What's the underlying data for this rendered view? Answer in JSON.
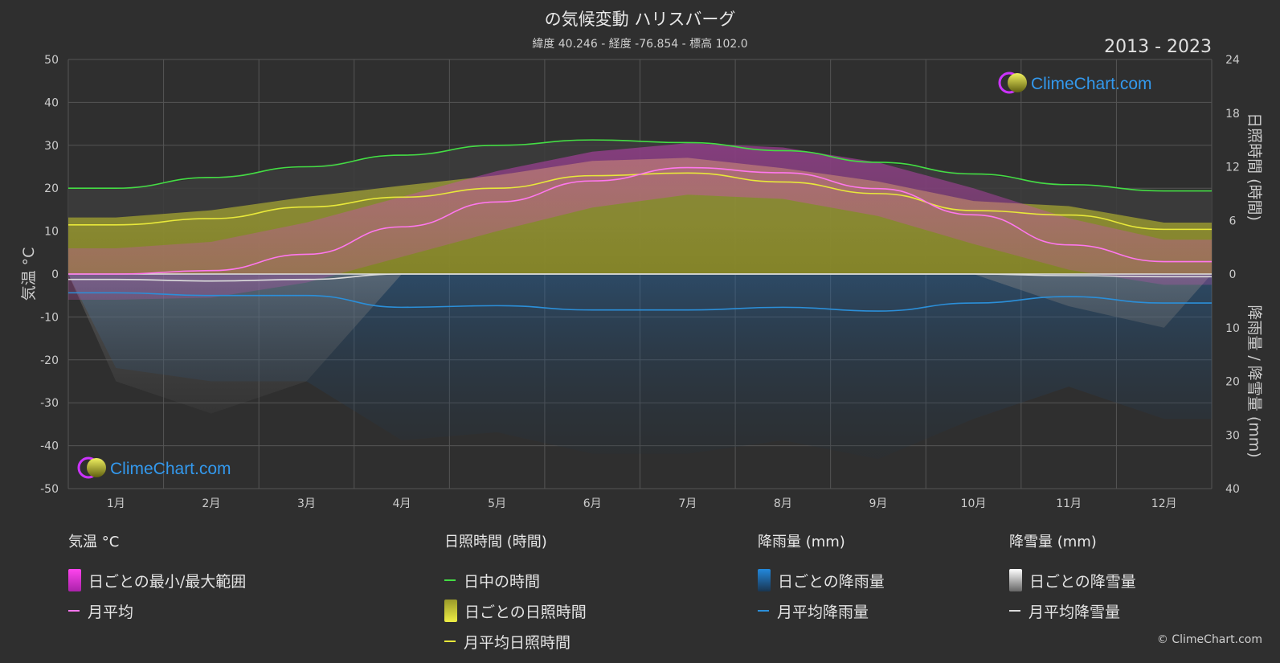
{
  "title": "の気候変動 ハリスバーグ",
  "subtitle": "緯度 40.246 - 経度 -76.854 - 標高 102.0",
  "years": "2013 - 2023",
  "brand": "ClimeChart.com",
  "copyright": "© ClimeChart.com",
  "axes": {
    "left_label": "気温 °C",
    "right_top_label": "日照時間 (時間)",
    "right_bottom_label": "降雨量 / 降雪量 (mm)",
    "left_ticks": [
      "50",
      "40",
      "30",
      "20",
      "10",
      "0",
      "-10",
      "-20",
      "-30",
      "-40",
      "-50"
    ],
    "right_top_ticks": [
      "24",
      "18",
      "12",
      "6",
      "0"
    ],
    "right_bottom_ticks": [
      "10",
      "20",
      "30",
      "40"
    ]
  },
  "legend": {
    "temperature": {
      "header": "気温 °C",
      "range": "日ごとの最小/最大範囲",
      "avg": "月平均"
    },
    "sunshine": {
      "header": "日照時間 (時間)",
      "daylight": "日中の時間",
      "daily": "日ごとの日照時間",
      "avg": "月平均日照時間"
    },
    "rain": {
      "header": "降雨量 (mm)",
      "daily": "日ごとの降雨量",
      "avg": "月平均降雨量"
    },
    "snow": {
      "header": "降雪量 (mm)",
      "daily": "日ごとの降雪量",
      "avg": "月平均降雪量"
    }
  },
  "colors": {
    "background": "#2f2f2f",
    "daylight": "#44dd44",
    "sunshine_line": "#e8e83a",
    "temp_line": "#ff77ee",
    "rain_line": "#2b8fd9",
    "snow_line": "#dddddd",
    "brand_text": "#3399ee"
  },
  "chart_data": {
    "type": "line",
    "categories": [
      "1月",
      "2月",
      "3月",
      "4月",
      "5月",
      "6月",
      "7月",
      "8月",
      "9月",
      "10月",
      "11月",
      "12月"
    ],
    "temp_ylim": [
      -50,
      50
    ],
    "sun_ylim": [
      0,
      24
    ],
    "precip_ylim": [
      0,
      40
    ],
    "series": [
      {
        "name": "日中の時間",
        "axis": "sun",
        "values": [
          9.6,
          10.8,
          12.0,
          13.3,
          14.4,
          15.0,
          14.7,
          13.8,
          12.5,
          11.2,
          10.0,
          9.3
        ]
      },
      {
        "name": "月平均日照時間",
        "axis": "sun",
        "values": [
          5.5,
          6.2,
          7.5,
          8.6,
          9.6,
          11.0,
          11.3,
          10.3,
          9.0,
          7.1,
          6.6,
          5.0
        ]
      },
      {
        "name": "月平均",
        "axis": "temp",
        "values": [
          0.0,
          0.8,
          4.6,
          11.0,
          16.8,
          21.7,
          24.8,
          23.6,
          19.9,
          13.8,
          6.8,
          2.9
        ]
      },
      {
        "name": "月平均降雨量",
        "axis": "precip",
        "values": [
          3.5,
          4.0,
          4.0,
          6.2,
          5.9,
          6.7,
          6.7,
          6.2,
          6.9,
          5.4,
          4.2,
          5.4
        ]
      },
      {
        "name": "月平均降雪量",
        "axis": "precip",
        "values": [
          1.0,
          1.3,
          1.0,
          0.0,
          0.0,
          0.0,
          0.0,
          0.0,
          0.0,
          0.0,
          0.3,
          0.5
        ]
      },
      {
        "name": "日ごとの最小/最大範囲",
        "axis": "temp",
        "min": [
          -6.0,
          -5.5,
          -2.0,
          4.0,
          10.0,
          15.5,
          18.5,
          17.5,
          13.5,
          7.0,
          1.0,
          -2.5
        ],
        "max": [
          6.0,
          7.5,
          12.0,
          18.0,
          24.0,
          28.5,
          30.5,
          29.5,
          26.0,
          20.0,
          13.0,
          8.0
        ]
      }
    ]
  }
}
